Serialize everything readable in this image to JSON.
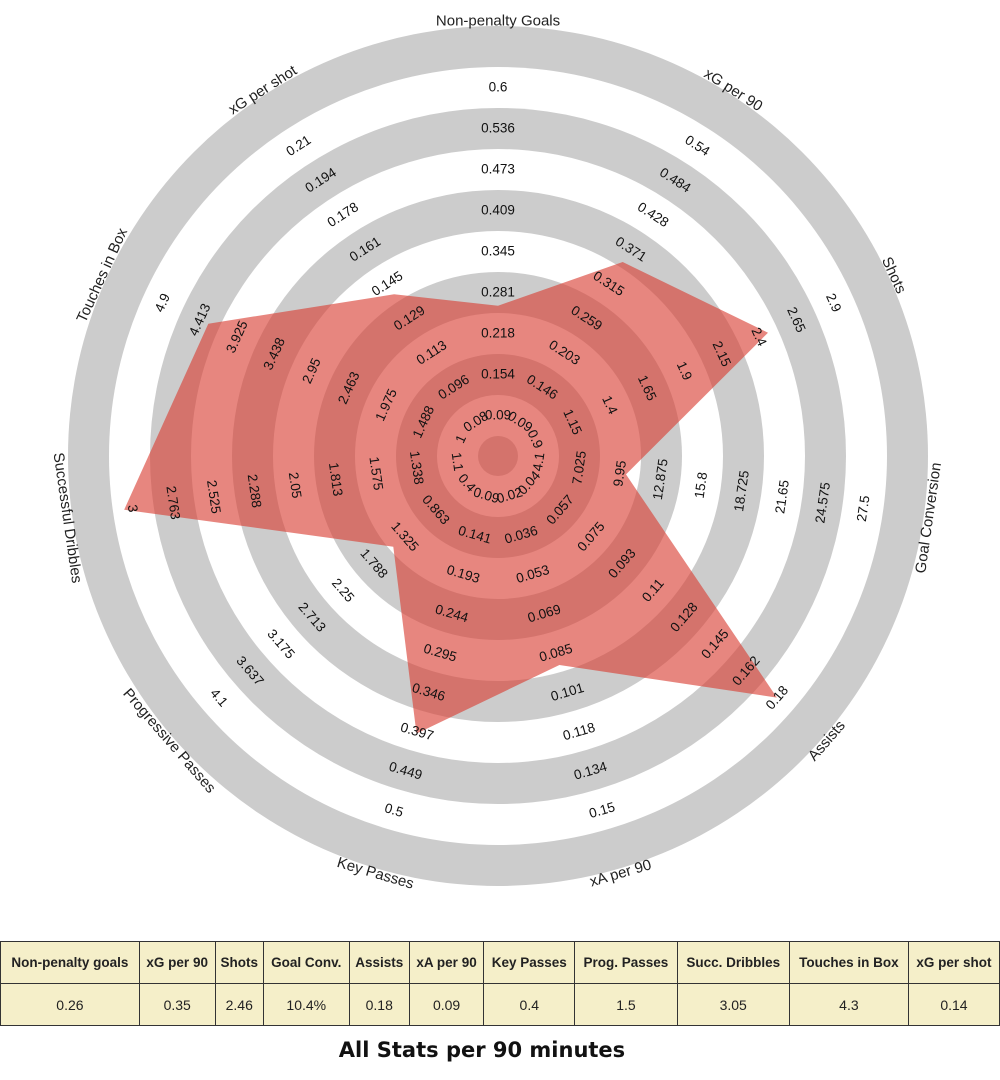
{
  "chart_data": {
    "type": "radar",
    "axes": [
      {
        "label": "Non-penalty Goals",
        "value": 0.26,
        "ticks": [
          "0.09",
          "0.154",
          "0.218",
          "0.281",
          "0.345",
          "0.409",
          "0.473",
          "0.536",
          "0.6"
        ]
      },
      {
        "label": "xG per 90",
        "value": 0.35,
        "ticks": [
          "0.09",
          "0.146",
          "0.203",
          "0.259",
          "0.315",
          "0.371",
          "0.428",
          "0.484",
          "0.54"
        ]
      },
      {
        "label": "Shots",
        "value": 2.46,
        "ticks": [
          "0.9",
          "1.15",
          "1.4",
          "1.65",
          "1.9",
          "2.15",
          "2.4",
          "2.65",
          "2.9"
        ]
      },
      {
        "label": "Goal Conversion",
        "value": 10.4,
        "ticks": [
          "4.1",
          "7.025",
          "9.95",
          "12.875",
          "15.8",
          "18.725",
          "21.65",
          "24.575",
          "27.5"
        ]
      },
      {
        "label": "Assists",
        "value": 0.18,
        "ticks": [
          "0.04",
          "0.057",
          "0.075",
          "0.093",
          "0.11",
          "0.128",
          "0.145",
          "0.162",
          "0.18"
        ]
      },
      {
        "label": "xA per 90",
        "value": 0.09,
        "ticks": [
          "0.02",
          "0.036",
          "0.053",
          "0.069",
          "0.085",
          "0.101",
          "0.118",
          "0.134",
          "0.15"
        ]
      },
      {
        "label": "Key Passes",
        "value": 0.4,
        "ticks": [
          "0.09",
          "0.141",
          "0.193",
          "0.244",
          "0.295",
          "0.346",
          "0.397",
          "0.449",
          "0.5"
        ]
      },
      {
        "label": "Progressive Passes",
        "value": 1.5,
        "ticks": [
          "0.4",
          "0.863",
          "1.325",
          "1.788",
          "2.25",
          "2.713",
          "3.175",
          "3.637",
          "4.1"
        ]
      },
      {
        "label": "Successful Dribbles",
        "value": 3.05,
        "ticks": [
          "1.1",
          "1.338",
          "1.575",
          "1.813",
          "2.05",
          "2.288",
          "2.525",
          "2.763",
          "3"
        ]
      },
      {
        "label": "Touches in Box",
        "value": 4.3,
        "ticks": [
          "1",
          "1.488",
          "1.975",
          "2.463",
          "2.95",
          "3.438",
          "3.925",
          "4.413",
          "4.9"
        ]
      },
      {
        "label": "xG per shot",
        "value": 0.14,
        "ticks": [
          "0.08",
          "0.096",
          "0.113",
          "0.129",
          "0.145",
          "0.161",
          "0.178",
          "0.194",
          "0.21"
        ]
      }
    ],
    "colors": {
      "ring_dark": "#cccccc",
      "ring_light": "#ffffff",
      "fill": "#d93c30",
      "fill_opacity": 0.62
    }
  },
  "table": {
    "headers": [
      "Non-penalty goals",
      "xG per 90",
      "Shots",
      "Goal Conv.",
      "Assists",
      "xA per 90",
      "Key Passes",
      "Prog. Passes",
      "Succ. Dribbles",
      "Touches in Box",
      "xG per shot"
    ],
    "values": [
      "0.26",
      "0.35",
      "2.46",
      "10.4%",
      "0.18",
      "0.09",
      "0.4",
      "1.5",
      "3.05",
      "4.3",
      "0.14"
    ],
    "background": "#f5efc9"
  },
  "caption": "All Stats per 90 minutes"
}
